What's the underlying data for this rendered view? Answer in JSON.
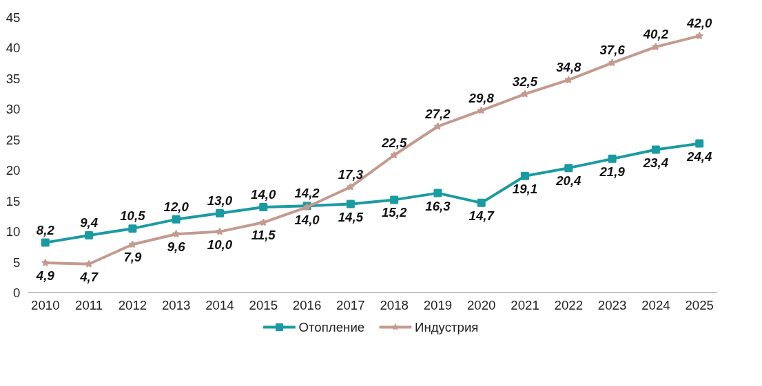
{
  "chart_data": {
    "type": "line",
    "x": [
      2010,
      2011,
      2012,
      2013,
      2014,
      2015,
      2016,
      2017,
      2018,
      2019,
      2020,
      2021,
      2022,
      2023,
      2024,
      2025
    ],
    "xticks": [
      2010,
      2011,
      2012,
      2013,
      2014,
      2015,
      2016,
      2017,
      2018,
      2019,
      2020,
      2021,
      2022,
      2023,
      2024,
      2025
    ],
    "xlim": [
      2009.6,
      2025.4
    ],
    "ylim": [
      0,
      45
    ],
    "yticks": [
      0,
      5,
      10,
      15,
      20,
      25,
      30,
      35,
      40,
      45
    ],
    "grid": false,
    "legend": "bottom",
    "series": [
      {
        "name": "Отопление",
        "color": "#1a9ba1",
        "marker": "square",
        "values": [
          8.2,
          9.4,
          10.5,
          12.0,
          13.0,
          14.0,
          14.2,
          14.5,
          15.2,
          16.3,
          14.7,
          19.1,
          20.4,
          21.9,
          23.4,
          24.4
        ],
        "value_labels": [
          "8,2",
          "9,4",
          "10,5",
          "12,0",
          "13,0",
          "14,0",
          "14,2",
          "14,5",
          "15,2",
          "16,3",
          "14,7",
          "19,1",
          "20,4",
          "21,9",
          "23,4",
          "24,4"
        ]
      },
      {
        "name": "Индустрия",
        "color": "#c49a8f",
        "marker": "star",
        "values": [
          4.9,
          4.7,
          7.9,
          9.6,
          10.0,
          11.5,
          14.0,
          17.3,
          22.5,
          27.2,
          29.8,
          32.5,
          34.8,
          37.6,
          40.2,
          42.0
        ],
        "value_labels": [
          "4,9",
          "4,7",
          "7,9",
          "9,6",
          "10,0",
          "11,5",
          "14,0",
          "17,3",
          "22,5",
          "27,2",
          "29,8",
          "32,5",
          "34,8",
          "37,6",
          "40,2",
          "42,0"
        ]
      }
    ]
  }
}
